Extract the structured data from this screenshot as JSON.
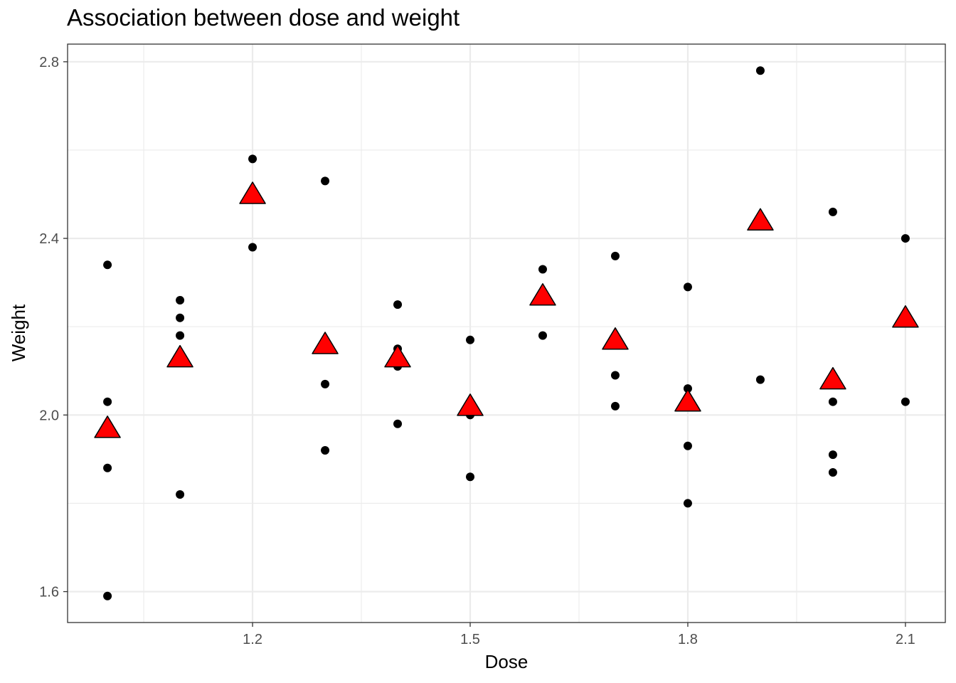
{
  "chart_data": {
    "type": "scatter",
    "title": "Association between dose and weight",
    "xlabel": "Dose",
    "ylabel": "Weight",
    "xlim": [
      0.945,
      2.155
    ],
    "ylim": [
      1.53,
      2.84
    ],
    "x_ticks": [
      1.2,
      1.5,
      1.8,
      2.1
    ],
    "x_tick_labels": [
      "1.2",
      "1.5",
      "1.8",
      "2.1"
    ],
    "y_ticks": [
      1.6,
      2.0,
      2.4,
      2.8
    ],
    "y_tick_labels": [
      "1.6",
      "2.0",
      "2.4",
      "2.8"
    ],
    "grid": true,
    "legend": "none",
    "colors": {
      "points": "#000000",
      "means": "#ff0000",
      "mean_outline": "#000000",
      "grid": "#ebebeb",
      "panel_border": "#333333"
    },
    "series": [
      {
        "marker": "circle",
        "points": [
          [
            1.0,
            1.59
          ],
          [
            1.0,
            1.88
          ],
          [
            1.0,
            2.03
          ],
          [
            1.0,
            2.34
          ],
          [
            1.1,
            1.82
          ],
          [
            1.1,
            2.18
          ],
          [
            1.1,
            2.22
          ],
          [
            1.1,
            2.26
          ],
          [
            1.2,
            2.38
          ],
          [
            1.2,
            2.58
          ],
          [
            1.3,
            1.92
          ],
          [
            1.3,
            2.07
          ],
          [
            1.3,
            2.53
          ],
          [
            1.4,
            1.98
          ],
          [
            1.4,
            2.11
          ],
          [
            1.4,
            2.15
          ],
          [
            1.4,
            2.25
          ],
          [
            1.5,
            1.86
          ],
          [
            1.5,
            2.0
          ],
          [
            1.5,
            2.17
          ],
          [
            1.6,
            2.18
          ],
          [
            1.6,
            2.33
          ],
          [
            1.7,
            2.02
          ],
          [
            1.7,
            2.09
          ],
          [
            1.7,
            2.36
          ],
          [
            1.8,
            1.8
          ],
          [
            1.8,
            1.93
          ],
          [
            1.8,
            2.06
          ],
          [
            1.8,
            2.29
          ],
          [
            1.9,
            2.08
          ],
          [
            1.9,
            2.78
          ],
          [
            2.0,
            1.87
          ],
          [
            2.0,
            1.91
          ],
          [
            2.0,
            2.03
          ],
          [
            2.0,
            2.46
          ],
          [
            2.1,
            2.03
          ],
          [
            2.1,
            2.4
          ]
        ]
      },
      {
        "marker": "triangle",
        "points": [
          [
            1.0,
            1.97
          ],
          [
            1.1,
            2.13
          ],
          [
            1.2,
            2.5
          ],
          [
            1.3,
            2.16
          ],
          [
            1.4,
            2.13
          ],
          [
            1.5,
            2.02
          ],
          [
            1.6,
            2.27
          ],
          [
            1.7,
            2.17
          ],
          [
            1.8,
            2.03
          ],
          [
            1.9,
            2.44
          ],
          [
            2.0,
            2.08
          ],
          [
            2.1,
            2.22
          ]
        ]
      }
    ]
  }
}
